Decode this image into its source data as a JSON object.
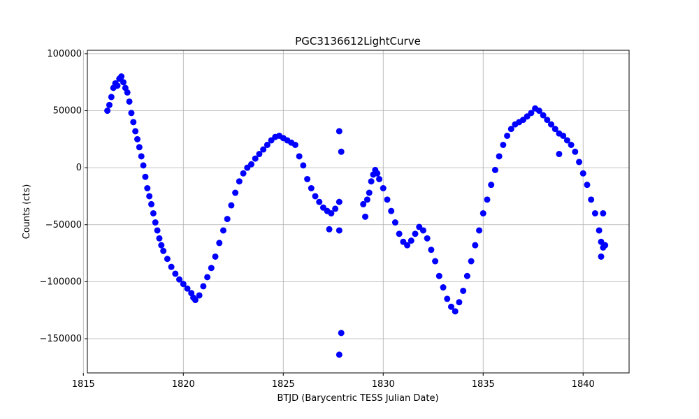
{
  "chart_data": {
    "type": "scatter",
    "title": "PGC3136612LightCurve",
    "xlabel": "BTJD (Barycentric TESS Julian Date)",
    "ylabel": "Counts (cts)",
    "xlim": [
      1815.2,
      1842.3
    ],
    "ylim": [
      -180000,
      103000
    ],
    "xticks": [
      1815,
      1820,
      1825,
      1830,
      1835,
      1840
    ],
    "xtick_labels": [
      "1815",
      "1820",
      "1825",
      "1830",
      "1835",
      "1840"
    ],
    "yticks": [
      -150000,
      -100000,
      -50000,
      0,
      50000,
      100000
    ],
    "ytick_labels": [
      "−150000",
      "−100000",
      "−50000",
      "0",
      "50000",
      "100000"
    ],
    "grid": true,
    "marker_color": "#0000ff",
    "series": [
      {
        "points": [
          [
            1816.2,
            50000
          ],
          [
            1816.3,
            55000
          ],
          [
            1816.4,
            62000
          ],
          [
            1816.5,
            70000
          ],
          [
            1816.6,
            74000
          ],
          [
            1816.7,
            72000
          ],
          [
            1816.8,
            78000
          ],
          [
            1816.9,
            80000
          ],
          [
            1817.0,
            75000
          ],
          [
            1817.1,
            70000
          ],
          [
            1817.2,
            66000
          ],
          [
            1817.3,
            58000
          ],
          [
            1817.4,
            48000
          ],
          [
            1817.5,
            40000
          ],
          [
            1817.6,
            32000
          ],
          [
            1817.7,
            25000
          ],
          [
            1817.8,
            18000
          ],
          [
            1817.9,
            10000
          ],
          [
            1818.0,
            2000
          ],
          [
            1818.1,
            -8000
          ],
          [
            1818.2,
            -18000
          ],
          [
            1818.3,
            -25000
          ],
          [
            1818.4,
            -32000
          ],
          [
            1818.5,
            -40000
          ],
          [
            1818.6,
            -48000
          ],
          [
            1818.7,
            -55000
          ],
          [
            1818.8,
            -62000
          ],
          [
            1818.9,
            -68000
          ],
          [
            1819.0,
            -73000
          ],
          [
            1819.2,
            -80000
          ],
          [
            1819.4,
            -87000
          ],
          [
            1819.6,
            -93000
          ],
          [
            1819.8,
            -98000
          ],
          [
            1820.0,
            -102000
          ],
          [
            1820.2,
            -106000
          ],
          [
            1820.4,
            -110000
          ],
          [
            1820.5,
            -114000
          ],
          [
            1820.6,
            -116000
          ],
          [
            1820.8,
            -112000
          ],
          [
            1821.0,
            -104000
          ],
          [
            1821.2,
            -96000
          ],
          [
            1821.4,
            -88000
          ],
          [
            1821.6,
            -78000
          ],
          [
            1821.8,
            -66000
          ],
          [
            1822.0,
            -55000
          ],
          [
            1822.2,
            -45000
          ],
          [
            1822.4,
            -33000
          ],
          [
            1822.6,
            -22000
          ],
          [
            1822.8,
            -12000
          ],
          [
            1823.0,
            -5000
          ],
          [
            1823.2,
            0
          ],
          [
            1823.4,
            3000
          ],
          [
            1823.6,
            8000
          ],
          [
            1823.8,
            12000
          ],
          [
            1824.0,
            16000
          ],
          [
            1824.2,
            20000
          ],
          [
            1824.4,
            24000
          ],
          [
            1824.6,
            27000
          ],
          [
            1824.8,
            28000
          ],
          [
            1825.0,
            26000
          ],
          [
            1825.2,
            24000
          ],
          [
            1825.4,
            22000
          ],
          [
            1825.6,
            20000
          ],
          [
            1825.8,
            10000
          ],
          [
            1826.0,
            2000
          ],
          [
            1826.2,
            -10000
          ],
          [
            1826.4,
            -18000
          ],
          [
            1826.6,
            -25000
          ],
          [
            1826.8,
            -30000
          ],
          [
            1827.0,
            -35000
          ],
          [
            1827.2,
            -38000
          ],
          [
            1827.4,
            -40000
          ],
          [
            1827.6,
            -36000
          ],
          [
            1827.8,
            -30000
          ],
          [
            1827.8,
            32000
          ],
          [
            1827.9,
            14000
          ],
          [
            1827.8,
            -55000
          ],
          [
            1827.9,
            -145000
          ],
          [
            1827.8,
            -164000
          ],
          [
            1827.3,
            -54000
          ],
          [
            1829.0,
            -32000
          ],
          [
            1829.1,
            -43000
          ],
          [
            1829.2,
            -28000
          ],
          [
            1829.3,
            -22000
          ],
          [
            1829.4,
            -12000
          ],
          [
            1829.5,
            -6000
          ],
          [
            1829.6,
            -2000
          ],
          [
            1829.7,
            -5000
          ],
          [
            1829.8,
            -10000
          ],
          [
            1830.0,
            -18000
          ],
          [
            1830.2,
            -28000
          ],
          [
            1830.4,
            -38000
          ],
          [
            1830.6,
            -48000
          ],
          [
            1830.8,
            -58000
          ],
          [
            1831.0,
            -65000
          ],
          [
            1831.2,
            -68000
          ],
          [
            1831.4,
            -64000
          ],
          [
            1831.6,
            -58000
          ],
          [
            1831.8,
            -52000
          ],
          [
            1832.0,
            -55000
          ],
          [
            1832.2,
            -62000
          ],
          [
            1832.4,
            -72000
          ],
          [
            1832.6,
            -82000
          ],
          [
            1832.8,
            -95000
          ],
          [
            1833.0,
            -105000
          ],
          [
            1833.2,
            -115000
          ],
          [
            1833.4,
            -122000
          ],
          [
            1833.6,
            -126000
          ],
          [
            1833.8,
            -118000
          ],
          [
            1834.0,
            -108000
          ],
          [
            1834.2,
            -95000
          ],
          [
            1834.4,
            -82000
          ],
          [
            1834.6,
            -68000
          ],
          [
            1834.8,
            -55000
          ],
          [
            1835.0,
            -40000
          ],
          [
            1835.2,
            -28000
          ],
          [
            1835.4,
            -15000
          ],
          [
            1835.6,
            -2000
          ],
          [
            1835.8,
            10000
          ],
          [
            1836.0,
            20000
          ],
          [
            1836.2,
            28000
          ],
          [
            1836.4,
            34000
          ],
          [
            1836.6,
            38000
          ],
          [
            1836.8,
            40000
          ],
          [
            1837.0,
            42000
          ],
          [
            1837.2,
            45000
          ],
          [
            1837.4,
            48000
          ],
          [
            1837.6,
            52000
          ],
          [
            1837.8,
            50000
          ],
          [
            1838.0,
            46000
          ],
          [
            1838.2,
            42000
          ],
          [
            1838.4,
            38000
          ],
          [
            1838.6,
            34000
          ],
          [
            1838.8,
            30000
          ],
          [
            1839.0,
            28000
          ],
          [
            1839.2,
            24000
          ],
          [
            1839.4,
            20000
          ],
          [
            1839.6,
            14000
          ],
          [
            1839.8,
            5000
          ],
          [
            1840.0,
            -5000
          ],
          [
            1840.2,
            -15000
          ],
          [
            1840.4,
            -28000
          ],
          [
            1840.6,
            -40000
          ],
          [
            1840.8,
            -55000
          ],
          [
            1840.9,
            -65000
          ],
          [
            1841.0,
            -70000
          ],
          [
            1841.1,
            -68000
          ],
          [
            1840.9,
            -78000
          ],
          [
            1841.0,
            -40000
          ],
          [
            1838.8,
            12000
          ]
        ]
      }
    ]
  }
}
